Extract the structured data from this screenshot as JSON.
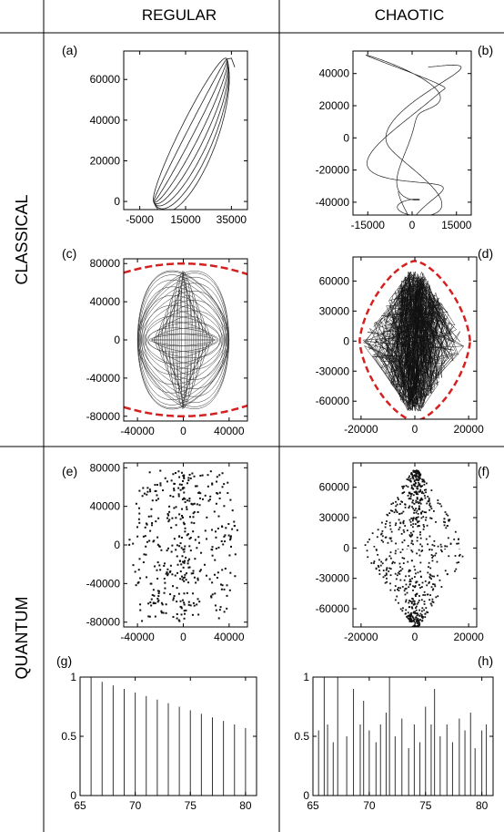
{
  "columns": {
    "regular": "REGULAR",
    "chaotic": "CHAOTIC"
  },
  "rows": {
    "classical": "CLASSICAL",
    "quantum": "QUANTUM"
  },
  "chart_data": [
    {
      "id": "a",
      "label": "(a)",
      "type": "line",
      "xticks": [
        "-5000",
        "15000",
        "35000"
      ],
      "yticks": [
        "0",
        "20000",
        "40000",
        "60000"
      ],
      "xlim": [
        -12000,
        42000
      ],
      "ylim": [
        -4000,
        74000
      ]
    },
    {
      "id": "b",
      "label": "(b)",
      "type": "line",
      "xticks": [
        "-15000",
        "0",
        "15000"
      ],
      "yticks": [
        "-40000",
        "-20000",
        "0",
        "20000",
        "40000"
      ],
      "xlim": [
        -20000,
        20000
      ],
      "ylim": [
        -48000,
        54000
      ]
    },
    {
      "id": "c",
      "label": "(c)",
      "type": "line",
      "xticks": [
        "-40000",
        "0",
        "40000"
      ],
      "yticks": [
        "-80000",
        "-40000",
        "0",
        "40000",
        "80000"
      ],
      "xlim": [
        -52000,
        56000
      ],
      "ylim": [
        -85000,
        85000
      ]
    },
    {
      "id": "d",
      "label": "(d)",
      "type": "line",
      "xticks": [
        "-20000",
        "0",
        "20000"
      ],
      "yticks": [
        "-60000",
        "-30000",
        "0",
        "30000",
        "60000"
      ],
      "xlim": [
        -23000,
        23000
      ],
      "ylim": [
        -78000,
        84000
      ]
    },
    {
      "id": "e",
      "label": "(e)",
      "type": "heatmap",
      "xticks": [
        "-40000",
        "0",
        "40000"
      ],
      "yticks": [
        "-80000",
        "-40000",
        "0",
        "40000",
        "80000"
      ],
      "xlim": [
        -52000,
        56000
      ],
      "ylim": [
        -85000,
        85000
      ]
    },
    {
      "id": "f",
      "label": "(f)",
      "type": "heatmap",
      "xticks": [
        "-20000",
        "0",
        "20000"
      ],
      "yticks": [
        "-60000",
        "-30000",
        "0",
        "30000",
        "60000"
      ],
      "xlim": [
        -23000,
        23000
      ],
      "ylim": [
        -78000,
        84000
      ]
    },
    {
      "id": "g",
      "label": "(g)",
      "type": "bar",
      "xticks": [
        "65",
        "70",
        "75",
        "80"
      ],
      "yticks": [
        "0",
        "0.5",
        "1"
      ],
      "xlim": [
        65,
        81
      ],
      "ylim": [
        0,
        1
      ],
      "x": [
        66,
        67,
        68,
        69,
        70,
        71,
        72,
        73,
        74,
        75,
        76,
        77,
        78,
        79,
        80
      ],
      "values": [
        1.0,
        0.96,
        0.93,
        0.9,
        0.87,
        0.84,
        0.81,
        0.78,
        0.75,
        0.72,
        0.69,
        0.66,
        0.63,
        0.6,
        0.57
      ]
    },
    {
      "id": "h",
      "label": "(h)",
      "type": "bar",
      "xticks": [
        "65",
        "70",
        "75",
        "80"
      ],
      "yticks": [
        "0",
        "0.5",
        "1"
      ],
      "xlim": [
        65,
        81
      ],
      "ylim": [
        0,
        1
      ],
      "x": [
        65.5,
        66,
        66.3,
        66.8,
        67.2,
        68,
        68.6,
        69.2,
        69.5,
        70,
        70.6,
        71,
        71.5,
        71.8,
        72.3,
        72.9,
        73.5,
        74,
        74.5,
        75,
        75.5,
        75.8,
        76.3,
        76.9,
        77.4,
        78,
        78.5,
        79,
        79.4,
        80,
        80.4
      ],
      "values": [
        0.55,
        1.0,
        0.6,
        0.45,
        1.0,
        0.5,
        0.9,
        0.6,
        0.8,
        0.55,
        0.45,
        0.6,
        0.7,
        1.0,
        0.5,
        0.65,
        0.4,
        0.6,
        0.45,
        0.75,
        0.6,
        0.9,
        0.5,
        0.6,
        0.45,
        0.65,
        0.55,
        0.7,
        0.4,
        0.55,
        0.6
      ]
    }
  ]
}
